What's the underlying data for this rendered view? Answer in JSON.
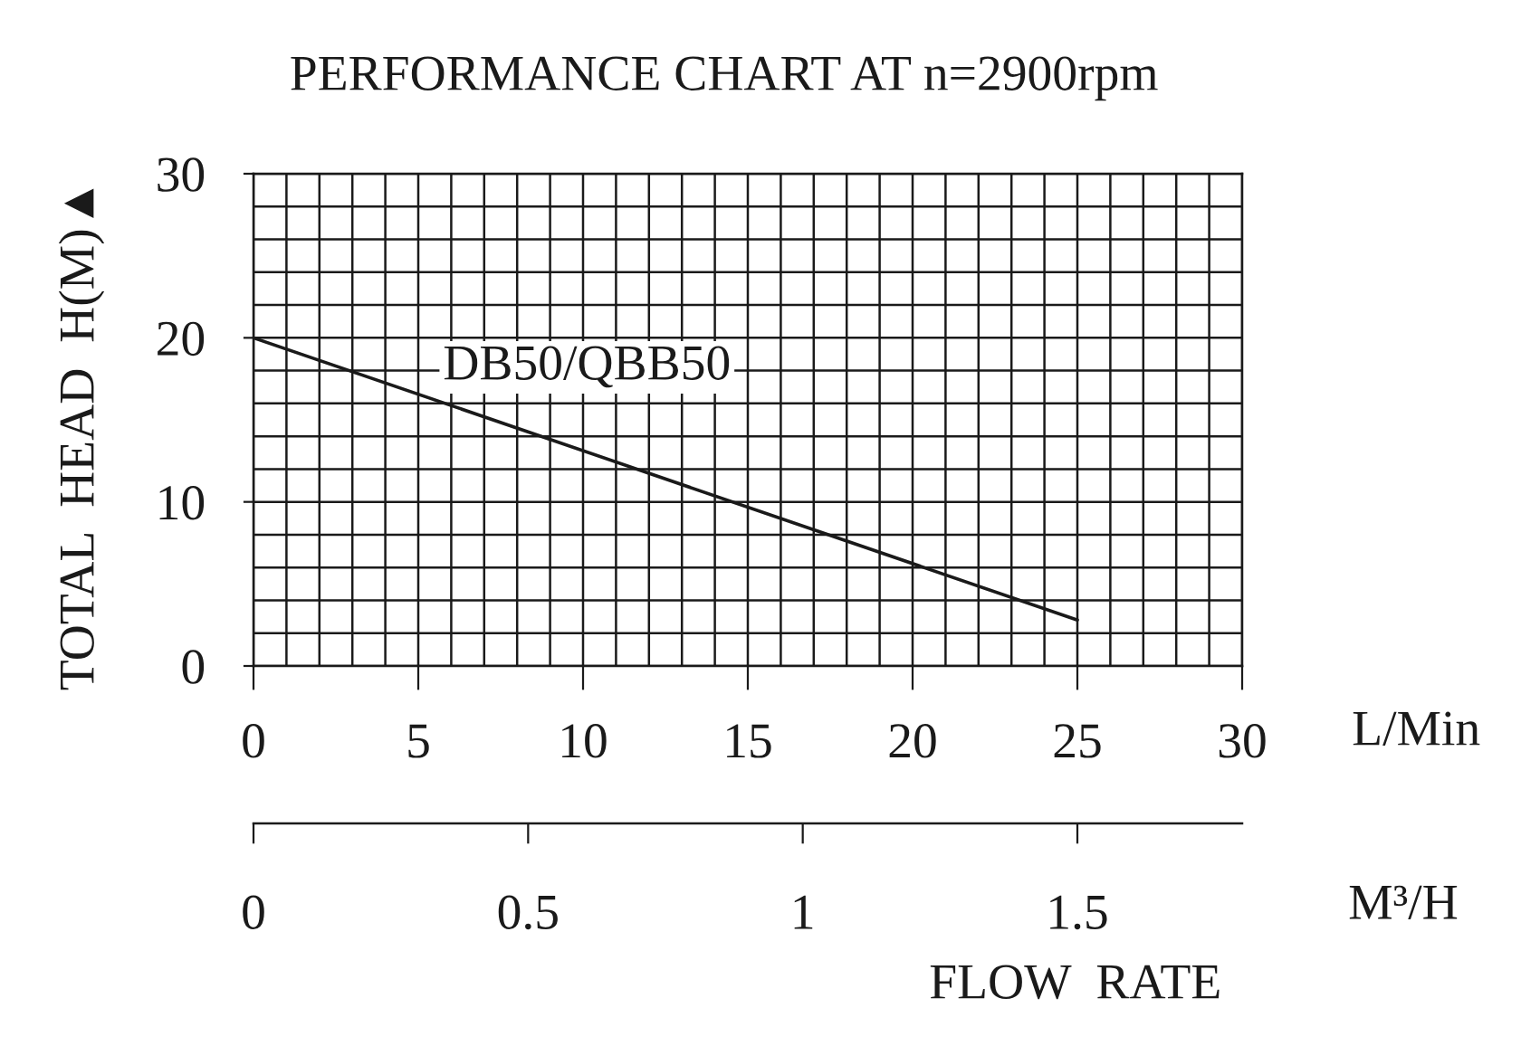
{
  "chart_data": {
    "type": "line",
    "title": "PERFORMANCE CHART AT n=2900rpm",
    "xlabel": "L/Min",
    "ylabel": "TOTAL  HEAD  H(M)▲",
    "x2label": "M³/H",
    "annotations": [
      "FLOW  RATE"
    ],
    "x": [
      0,
      25
    ],
    "series": [
      {
        "name": "DB50/QBB50",
        "color": "#1a1a1a",
        "values": [
          20,
          2.8
        ]
      }
    ],
    "xlim": [
      0,
      30
    ],
    "xticks": [
      0,
      {
        "value": 1,
        "label": null
      },
      {
        "value": 2,
        "label": null
      },
      {
        "value": 3,
        "label": null
      },
      {
        "value": 4,
        "label": null
      },
      5,
      {
        "value": 6,
        "label": null
      },
      {
        "value": 7,
        "label": null
      },
      {
        "value": 8,
        "label": null
      },
      {
        "value": 9,
        "label": null
      },
      10,
      {
        "value": 11,
        "label": null
      },
      {
        "value": 12,
        "label": null
      },
      {
        "value": 13,
        "label": null
      },
      {
        "value": 14,
        "label": null
      },
      15,
      {
        "value": 16,
        "label": null
      },
      {
        "value": 17,
        "label": null
      },
      {
        "value": 18,
        "label": null
      },
      {
        "value": 19,
        "label": null
      },
      20,
      {
        "value": 21,
        "label": null
      },
      {
        "value": 22,
        "label": null
      },
      {
        "value": 23,
        "label": null
      },
      {
        "value": 24,
        "label": null
      },
      25,
      {
        "value": 26,
        "label": null
      },
      {
        "value": 27,
        "label": null
      },
      {
        "value": 28,
        "label": null
      },
      {
        "value": 29,
        "label": null
      },
      30
    ],
    "ylim": [
      0,
      30
    ],
    "yticks": [
      0,
      {
        "value": 2,
        "label": null
      },
      {
        "value": 4,
        "label": null
      },
      {
        "value": 6,
        "label": null
      },
      {
        "value": 8,
        "label": null
      },
      10,
      {
        "value": 12,
        "label": null
      },
      {
        "value": 14,
        "label": null
      },
      {
        "value": 16,
        "label": null
      },
      {
        "value": 18,
        "label": null
      },
      20,
      {
        "value": 22,
        "label": null
      },
      {
        "value": 24,
        "label": null
      },
      {
        "value": 26,
        "label": null
      },
      {
        "value": 28,
        "label": null
      },
      30
    ],
    "x2lim": [
      0,
      1.8
    ],
    "x2ticks": [
      0,
      0.5,
      1,
      1.5
    ],
    "grid": true,
    "legend": false,
    "line_style": "solid"
  }
}
